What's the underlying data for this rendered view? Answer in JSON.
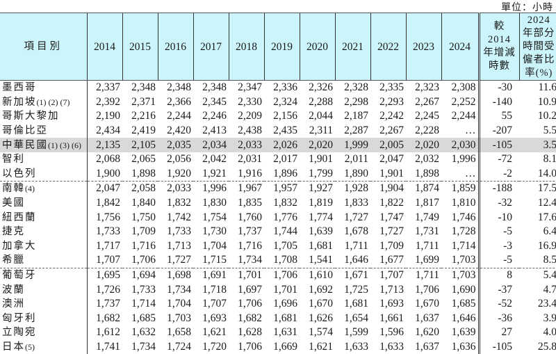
{
  "unit_label": "單位：小時",
  "header": {
    "item": "項目別",
    "years": [
      "2014",
      "2015",
      "2016",
      "2017",
      "2018",
      "2019",
      "2020",
      "2021",
      "2022",
      "2023",
      "2024"
    ],
    "change": "較 2014 年增減時數",
    "part_time": "2024 年部分時間受僱者比率(%)"
  },
  "rows": [
    {
      "name": "墨西哥",
      "note": "",
      "v": [
        "2,337",
        "2,348",
        "2,348",
        "2,348",
        "2,347",
        "2,336",
        "2,326",
        "2,328",
        "2,335",
        "2,323",
        "2,308"
      ],
      "chg": "-30",
      "pct": "11.6"
    },
    {
      "name": "新加坡",
      "note": "(1) (2) (7)",
      "v": [
        "2,392",
        "2,371",
        "2,366",
        "2,345",
        "2,330",
        "2,324",
        "2,288",
        "2,298",
        "2,293",
        "2,267",
        "2,252"
      ],
      "chg": "-140",
      "pct": "10.9"
    },
    {
      "name": "哥斯大黎加",
      "note": "",
      "v": [
        "2,190",
        "2,216",
        "2,244",
        "2,246",
        "2,209",
        "2,156",
        "2,044",
        "2,187",
        "2,242",
        "2,245",
        "2,244"
      ],
      "chg": "55",
      "pct": "10.2"
    },
    {
      "name": "哥倫比亞",
      "note": "",
      "v": [
        "2,434",
        "2,419",
        "2,420",
        "2,413",
        "2,438",
        "2,435",
        "2,311",
        "2,287",
        "2,267",
        "2,228",
        "…"
      ],
      "chg": "-207",
      "pct": "5.5"
    },
    {
      "name": "中華民國",
      "note": "(1) (3) (6)",
      "v": [
        "2,135",
        "2,105",
        "2,035",
        "2,034",
        "2,033",
        "2,026",
        "2,020",
        "1,999",
        "2,005",
        "2,020",
        "2,030"
      ],
      "chg": "-105",
      "pct": "3.5",
      "highlight": true
    },
    {
      "name": "智利",
      "note": "",
      "v": [
        "2,068",
        "2,065",
        "2,056",
        "2,042",
        "2,031",
        "2,017",
        "1,901",
        "2,011",
        "2,047",
        "2,032",
        "1,996"
      ],
      "chg": "-72",
      "pct": "8.1"
    },
    {
      "name": "以色列",
      "note": "",
      "v": [
        "1,900",
        "1,898",
        "1,920",
        "1,921",
        "1,916",
        "1,896",
        "1,799",
        "1,890",
        "1,901",
        "1,898",
        "…"
      ],
      "chg": "-2",
      "pct": "14.0",
      "sep": true
    },
    {
      "name": "南韓",
      "note": "(4)",
      "v": [
        "2,047",
        "2,058",
        "2,033",
        "1,996",
        "1,967",
        "1,957",
        "1,927",
        "1,928",
        "1,904",
        "1,874",
        "1,859"
      ],
      "chg": "-188",
      "pct": "17.5"
    },
    {
      "name": "美國",
      "note": "",
      "v": [
        "1,842",
        "1,840",
        "1,832",
        "1,830",
        "1,835",
        "1,832",
        "1,819",
        "1,833",
        "1,822",
        "1,817",
        "1,810"
      ],
      "chg": "-32",
      "pct": "12.4"
    },
    {
      "name": "紐西蘭",
      "note": "",
      "v": [
        "1,756",
        "1,750",
        "1,742",
        "1,754",
        "1,760",
        "1,776",
        "1,774",
        "1,727",
        "1,747",
        "1,749",
        "1,746"
      ],
      "chg": "-10",
      "pct": "17.6"
    },
    {
      "name": "捷克",
      "note": "",
      "v": [
        "1,733",
        "1,709",
        "1,733",
        "1,730",
        "1,737",
        "1,744",
        "1,639",
        "1,678",
        "1,727",
        "1,731",
        "1,728"
      ],
      "chg": "-5",
      "pct": "6.4"
    },
    {
      "name": "加拿大",
      "note": "",
      "v": [
        "1,717",
        "1,716",
        "1,713",
        "1,704",
        "1,716",
        "1,705",
        "1,681",
        "1,711",
        "1,709",
        "1,711",
        "1,714"
      ],
      "chg": "-3",
      "pct": "16.9"
    },
    {
      "name": "希臘",
      "note": "",
      "v": [
        "1,707",
        "1,706",
        "1,727",
        "1,715",
        "1,734",
        "1,708",
        "1,541",
        "1,646",
        "1,677",
        "1,699",
        "1,703"
      ],
      "chg": "-5",
      "pct": "8.5",
      "sep": true
    },
    {
      "name": "葡萄牙",
      "note": "",
      "v": [
        "1,695",
        "1,694",
        "1,698",
        "1,691",
        "1,701",
        "1,706",
        "1,610",
        "1,671",
        "1,707",
        "1,711",
        "1,703"
      ],
      "chg": "8",
      "pct": "5.4"
    },
    {
      "name": "波蘭",
      "note": "",
      "v": [
        "1,726",
        "1,733",
        "1,734",
        "1,718",
        "1,697",
        "1,701",
        "1,692",
        "1,725",
        "1,713",
        "1,706",
        "1,690"
      ],
      "chg": "-37",
      "pct": "4.7"
    },
    {
      "name": "澳洲",
      "note": "",
      "v": [
        "1,737",
        "1,714",
        "1,704",
        "1,707",
        "1,706",
        "1,696",
        "1,670",
        "1,681",
        "1,693",
        "1,670",
        "1,685"
      ],
      "chg": "-52",
      "pct": "23.4"
    },
    {
      "name": "匈牙利",
      "note": "",
      "v": [
        "1,682",
        "1,685",
        "1,703",
        "1,693",
        "1,682",
        "1,681",
        "1,626",
        "1,654",
        "1,661",
        "1,637",
        "1,646"
      ],
      "chg": "-36",
      "pct": "3.9"
    },
    {
      "name": "立陶宛",
      "note": "",
      "v": [
        "1,612",
        "1,632",
        "1,658",
        "1,621",
        "1,628",
        "1,631",
        "1,574",
        "1,599",
        "1,596",
        "1,620",
        "1,639"
      ],
      "chg": "27",
      "pct": "4.0"
    },
    {
      "name": "日本",
      "note": "(5)",
      "v": [
        "1,741",
        "1,734",
        "1,724",
        "1,720",
        "1,706",
        "1,669",
        "1,621",
        "1,633",
        "1,633",
        "1,637",
        "1,636"
      ],
      "chg": "-105",
      "pct": "25.8"
    }
  ]
}
